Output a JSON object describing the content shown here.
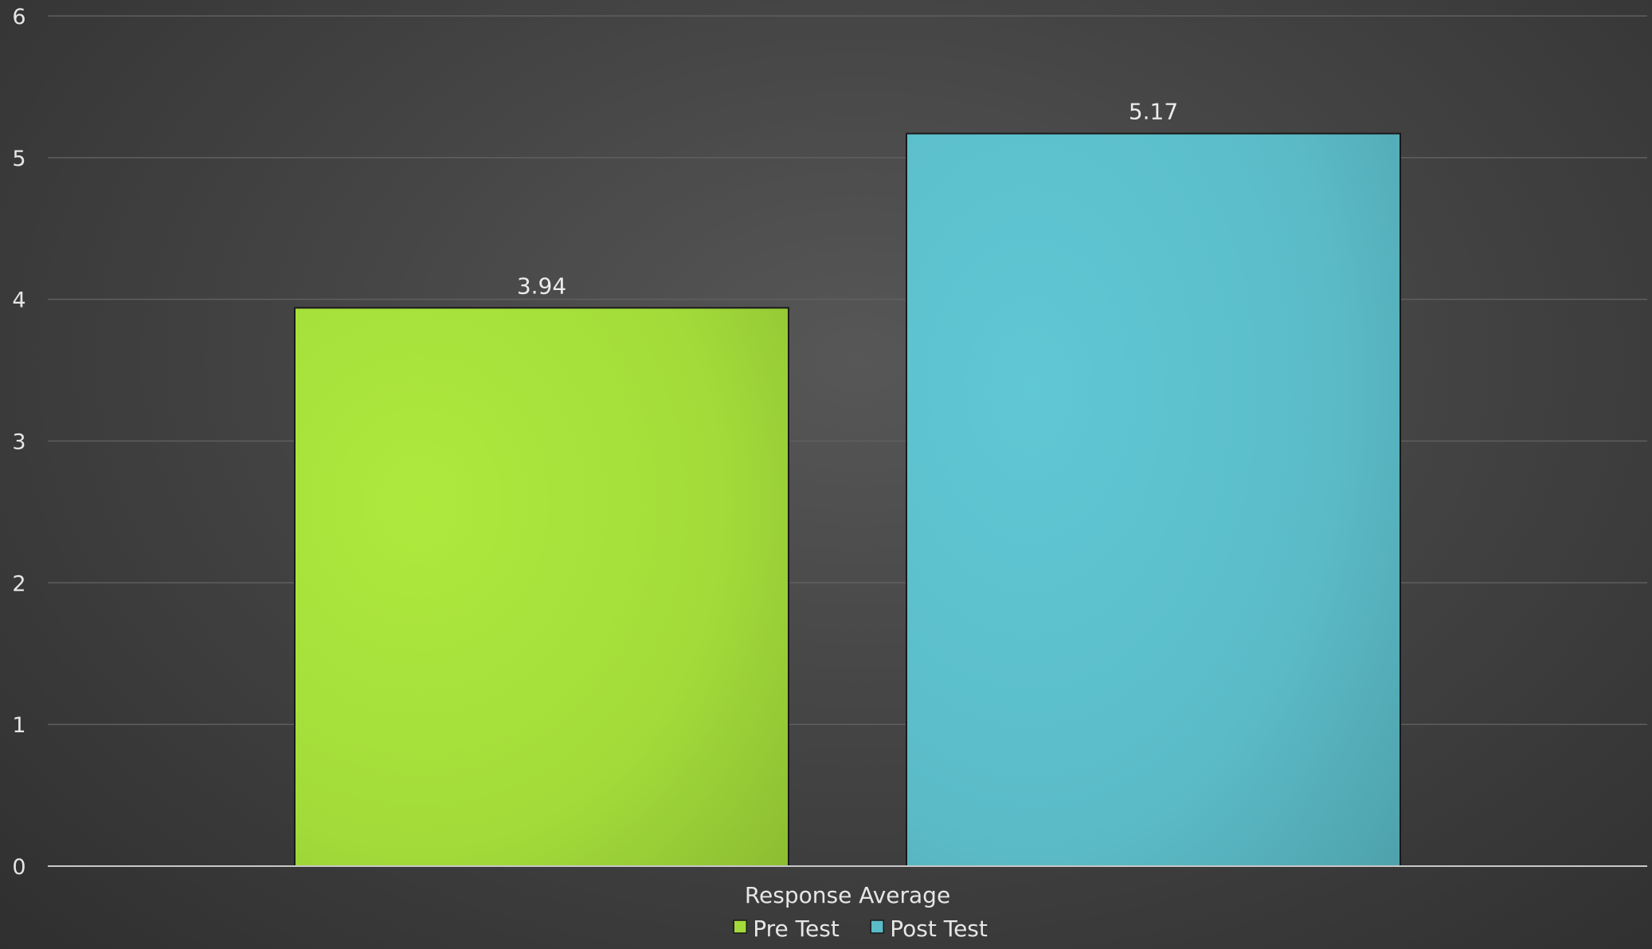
{
  "chart_data": {
    "type": "bar",
    "title": "",
    "xlabel": "",
    "ylabel": "",
    "categories": [
      "Response Average"
    ],
    "series": [
      {
        "name": "Pre Test",
        "values": [
          3.94
        ],
        "color": "#a3dc3a"
      },
      {
        "name": "Post Test",
        "values": [
          5.17
        ],
        "color": "#5bbcc8"
      }
    ],
    "ylim": [
      0,
      6
    ],
    "yticks": [
      "0",
      "1",
      "2",
      "3",
      "4",
      "5",
      "6"
    ],
    "data_labels": [
      "3.94",
      "5.17"
    ],
    "grid": true,
    "legend_position": "bottom-center",
    "colors": {
      "background": "#444444",
      "gridline": "#5f5f5f",
      "axis": "#c8c8c8",
      "text": "#e6e6e6"
    }
  }
}
